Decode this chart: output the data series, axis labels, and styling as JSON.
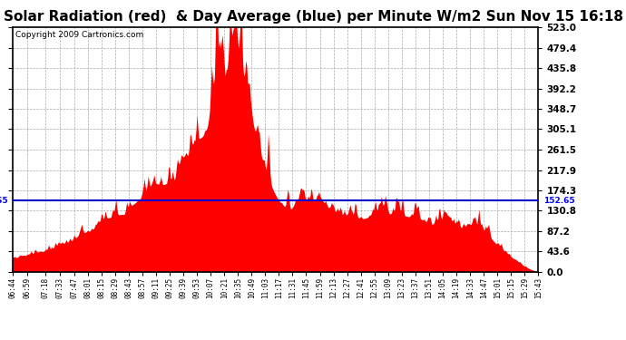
{
  "title": "Solar Radiation (red)  & Day Average (blue) per Minute W/m2 Sun Nov 15 16:18",
  "copyright": "Copyright 2009 Cartronics.com",
  "ymax": 523.0,
  "ymin": 0.0,
  "yticks": [
    0.0,
    43.6,
    87.2,
    130.8,
    174.3,
    217.9,
    261.5,
    305.1,
    348.7,
    392.2,
    435.8,
    479.4,
    523.0
  ],
  "ytick_labels": [
    "0.0",
    "43.6",
    "87.2",
    "130.8",
    "174.3",
    "217.9",
    "261.5",
    "305.1",
    "348.7",
    "392.2",
    "435.8",
    "479.4",
    "523.0"
  ],
  "avg_line": 152.65,
  "avg_label": "152.65",
  "fill_color": "#ff0000",
  "avg_color": "#0000cc",
  "background_color": "white",
  "title_fontsize": 11,
  "copyright_fontsize": 6.5,
  "x_label_fontsize": 5.5,
  "y_label_fontsize": 7.5,
  "x_tick_times": [
    "06:44",
    "06:59",
    "07:18",
    "07:33",
    "07:47",
    "08:01",
    "08:15",
    "08:29",
    "08:43",
    "08:57",
    "09:11",
    "09:25",
    "09:39",
    "09:53",
    "10:07",
    "10:21",
    "10:35",
    "10:49",
    "11:03",
    "11:17",
    "11:31",
    "11:45",
    "11:59",
    "12:13",
    "12:27",
    "12:41",
    "12:55",
    "13:09",
    "13:23",
    "13:37",
    "13:51",
    "14:05",
    "14:19",
    "14:33",
    "14:47",
    "15:01",
    "15:15",
    "15:29",
    "15:43"
  ]
}
